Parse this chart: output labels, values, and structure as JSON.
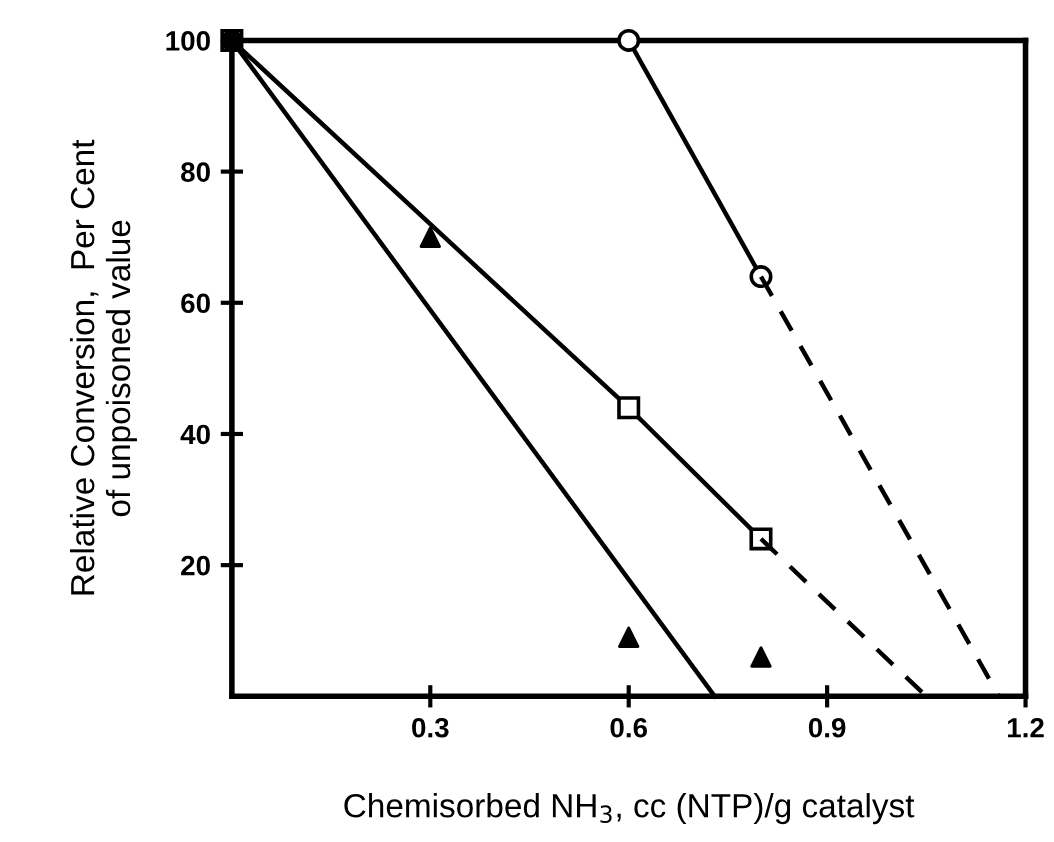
{
  "chart_data": {
    "type": "line",
    "xlabel": "Chemisorbed NH$_{3}$, cc (NTP)/g catalyst",
    "ylabel": "Relative Conversion,  Per Cent\nof unpoisoned value",
    "xlim": [
      0,
      1.2
    ],
    "ylim": [
      0,
      100
    ],
    "xticks": [
      0.3,
      0.6,
      0.9,
      1.2
    ],
    "yticks": [
      20,
      40,
      60,
      80,
      100
    ],
    "grid": false,
    "legend": false,
    "series": [
      {
        "color": "#000000",
        "x": [
          0.6,
          0.8
        ],
        "values": [
          100,
          64
        ],
        "marker": "circle",
        "line_style": "solid"
      },
      {
        "color": "#000000",
        "x": [
          0.8,
          1.16
        ],
        "values": [
          64,
          0
        ],
        "marker": "none",
        "line_style": "dashed"
      },
      {
        "color": "#000000",
        "x": [
          0,
          0.6,
          0.8
        ],
        "values": [
          100,
          44,
          24
        ],
        "marker": "square",
        "line_style": "solid"
      },
      {
        "color": "#000000",
        "x": [
          0.8,
          1.05
        ],
        "values": [
          24,
          0
        ],
        "marker": "none",
        "line_style": "dashed"
      },
      {
        "color": "#000000",
        "x": [
          0,
          0.73
        ],
        "values": [
          100,
          0
        ],
        "marker": "none",
        "line_style": "solid"
      },
      {
        "type": "scatter",
        "color": "#000000",
        "x": [
          0.3,
          0.6,
          0.8
        ],
        "values": [
          70,
          9,
          6
        ],
        "marker": "triangle"
      },
      {
        "type": "scatter",
        "color": "#000000",
        "x": [
          0
        ],
        "values": [
          100
        ],
        "marker": "circle"
      }
    ]
  }
}
